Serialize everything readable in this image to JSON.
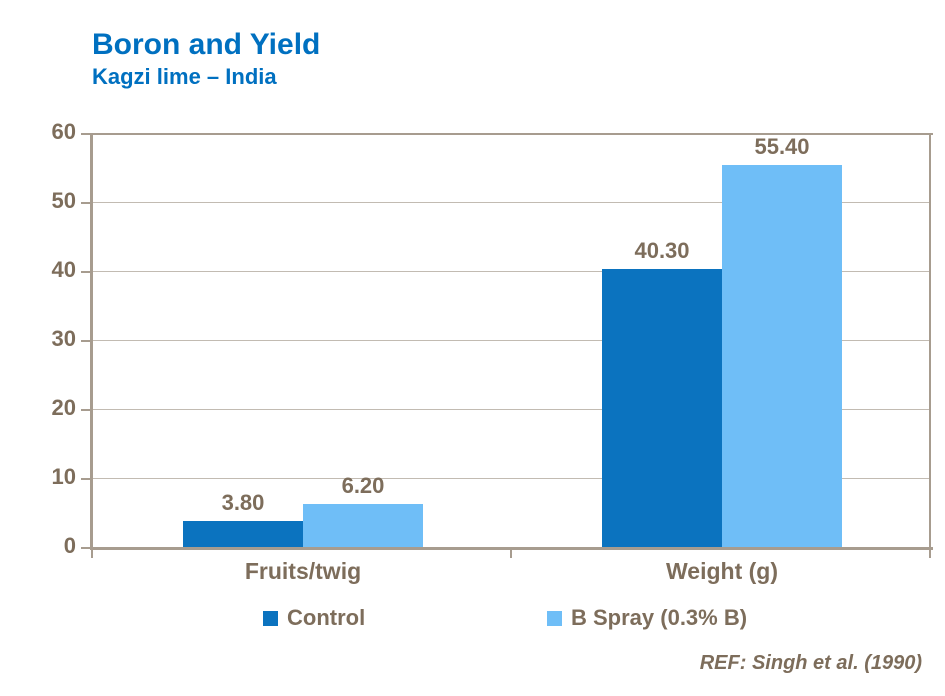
{
  "header": {
    "title": "Boron and Yield",
    "subtitle": "Kagzi lime – India"
  },
  "footer": {
    "reference": "REF: Singh et al. (1990)"
  },
  "colors": {
    "title_blue": "#0070C0",
    "control_bar": "#0B73BF",
    "bspray_bar": "#6FBEF7",
    "text_brown": "#7D6D5B",
    "axis_line": "#A79C8F",
    "gridline": "#C2BBB2"
  },
  "chart_data": {
    "type": "bar",
    "title": "Boron and Yield",
    "subtitle": "Kagzi lime – India",
    "categories": [
      "Fruits/twig",
      "Weight (g)"
    ],
    "series": [
      {
        "name": "Control",
        "color_key": "control_bar",
        "values": [
          3.8,
          40.3
        ],
        "labels": [
          "3.80",
          "40.30"
        ]
      },
      {
        "name": "B Spray (0.3% B)",
        "color_key": "bspray_bar",
        "values": [
          6.2,
          55.4
        ],
        "labels": [
          "6.20",
          "55.40"
        ]
      }
    ],
    "xlabel": "",
    "ylabel": "",
    "ylim": [
      0,
      60
    ],
    "yticks": [
      0,
      10,
      20,
      30,
      40,
      50,
      60
    ],
    "grid": true,
    "legend_position": "bottom",
    "annotation": "REF: Singh et al. (1990)"
  }
}
